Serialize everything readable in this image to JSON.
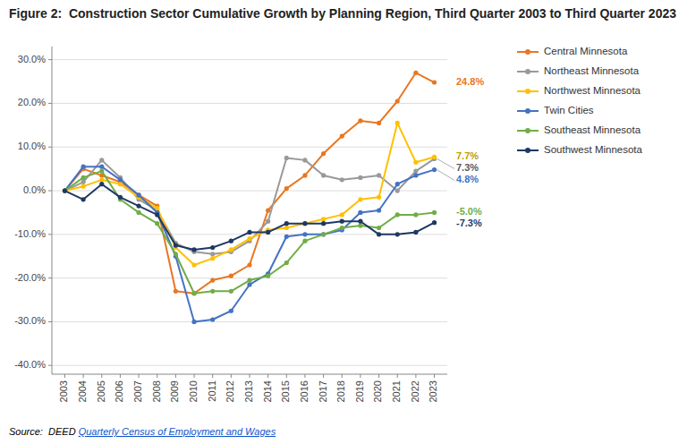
{
  "chart_data": {
    "type": "line",
    "title": "Figure 2:  Construction Sector Cumulative Growth by Planning Region, Third Quarter 2003 to Third Quarter 2023",
    "x": [
      2003,
      2004,
      2005,
      2006,
      2007,
      2008,
      2009,
      2010,
      2011,
      2012,
      2013,
      2014,
      2015,
      2016,
      2017,
      2018,
      2019,
      2020,
      2021,
      2022,
      2023
    ],
    "xlim": [
      2002.3,
      2023.7
    ],
    "xticks": [
      2003,
      2004,
      2005,
      2006,
      2007,
      2008,
      2009,
      2010,
      2011,
      2012,
      2013,
      2014,
      2015,
      2016,
      2017,
      2018,
      2019,
      2020,
      2021,
      2022,
      2023
    ],
    "ylim": [
      -42,
      33
    ],
    "yticks": [
      {
        "value": -40,
        "label": "-40.0%"
      },
      {
        "value": -30,
        "label": "-30.0%"
      },
      {
        "value": -20,
        "label": "-20.0%"
      },
      {
        "value": -10,
        "label": "-10.0%"
      },
      {
        "value": 0,
        "label": "0.0%"
      },
      {
        "value": 10,
        "label": "10.0%"
      },
      {
        "value": 20,
        "label": "20.0%"
      },
      {
        "value": 30,
        "label": "30.0%"
      }
    ],
    "grid": true,
    "legend": "right",
    "series": [
      {
        "name": "Central Minnesota",
        "color": "#E87722",
        "label_color": "#E87722",
        "values": [
          0.0,
          5.0,
          3.5,
          2.0,
          -1.0,
          -3.5,
          -23.0,
          -23.5,
          -20.5,
          -19.5,
          -17.0,
          -4.5,
          0.5,
          3.5,
          8.5,
          12.5,
          16.0,
          15.5,
          20.5,
          27.0,
          24.8
        ],
        "value_labels": [
          null,
          null,
          null,
          null,
          null,
          null,
          null,
          null,
          null,
          null,
          null,
          null,
          null,
          null,
          null,
          null,
          null,
          null,
          null,
          null,
          "24.8%"
        ]
      },
      {
        "name": "Northeast Minnesota",
        "color": "#999999",
        "label_color": "#595959",
        "values": [
          0.0,
          2.0,
          7.0,
          3.0,
          -2.0,
          -4.5,
          -12.0,
          -14.0,
          -14.5,
          -14.0,
          -11.5,
          -7.0,
          7.5,
          7.0,
          3.5,
          2.5,
          3.0,
          3.5,
          0.0,
          4.5,
          7.3
        ],
        "value_labels": [
          null,
          null,
          null,
          null,
          null,
          null,
          null,
          null,
          null,
          null,
          null,
          null,
          null,
          null,
          null,
          null,
          null,
          null,
          null,
          null,
          "7.3%"
        ]
      },
      {
        "name": "Northwest Minnesota",
        "color": "#FFC000",
        "label_color": "#C49A00",
        "values": [
          0.0,
          1.0,
          2.5,
          1.5,
          -1.5,
          -4.0,
          -13.0,
          -17.0,
          -15.5,
          -13.5,
          -11.0,
          -9.0,
          -8.5,
          -7.5,
          -6.5,
          -5.5,
          -2.0,
          -1.5,
          15.5,
          6.5,
          7.7
        ],
        "value_labels": [
          null,
          null,
          null,
          null,
          null,
          null,
          null,
          null,
          null,
          null,
          null,
          null,
          null,
          null,
          null,
          null,
          null,
          null,
          null,
          null,
          "7.7%"
        ]
      },
      {
        "name": "Twin Cities",
        "color": "#4472C4",
        "label_color": "#4472C4",
        "values": [
          0.0,
          5.5,
          5.5,
          2.5,
          -1.0,
          -5.0,
          -15.0,
          -30.0,
          -29.5,
          -27.5,
          -21.5,
          -19.0,
          -10.5,
          -10.0,
          -10.0,
          -9.0,
          -5.0,
          -4.5,
          1.5,
          3.5,
          4.8
        ],
        "value_labels": [
          null,
          null,
          null,
          null,
          null,
          null,
          null,
          null,
          null,
          null,
          null,
          null,
          null,
          null,
          null,
          null,
          null,
          null,
          null,
          null,
          "4.8%"
        ]
      },
      {
        "name": "Southeast Minnesota",
        "color": "#70AD47",
        "label_color": "#70AD47",
        "values": [
          0.0,
          3.0,
          4.5,
          -2.0,
          -5.0,
          -7.5,
          -14.5,
          -23.5,
          -23.0,
          -23.0,
          -20.5,
          -19.5,
          -16.5,
          -11.5,
          -10.0,
          -8.5,
          -8.0,
          -8.5,
          -5.5,
          -5.5,
          -5.0
        ],
        "value_labels": [
          null,
          null,
          null,
          null,
          null,
          null,
          null,
          null,
          null,
          null,
          null,
          null,
          null,
          null,
          null,
          null,
          null,
          null,
          null,
          null,
          "-5.0%"
        ]
      },
      {
        "name": "Southwest Minnesota",
        "color": "#1F3864",
        "label_color": "#1F3864",
        "values": [
          0.0,
          -2.0,
          1.5,
          -1.5,
          -3.5,
          -5.5,
          -12.5,
          -13.5,
          -13.0,
          -11.5,
          -9.5,
          -9.5,
          -7.5,
          -7.5,
          -7.5,
          -7.0,
          -7.0,
          -10.0,
          -10.0,
          -9.5,
          -7.3
        ],
        "value_labels": [
          null,
          null,
          null,
          null,
          null,
          null,
          null,
          null,
          null,
          null,
          null,
          null,
          null,
          null,
          null,
          null,
          null,
          null,
          null,
          null,
          "-7.3%"
        ]
      }
    ],
    "annotations": [
      {
        "text": "Source:  DEED ",
        "color": "#000000"
      },
      {
        "text": "Quarterly Census of Employment and Wages",
        "color": "#1155CC"
      }
    ]
  }
}
